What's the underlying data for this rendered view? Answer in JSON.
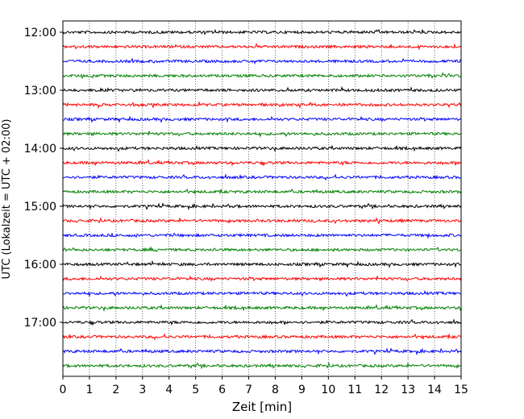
{
  "chart_data": {
    "type": "line",
    "title": "",
    "xlabel": "Zeit  [min]",
    "ylabel": "UTC (Lokalzeit = UTC + 02:00)",
    "xlim": [
      0,
      15
    ],
    "x_ticks": [
      "0",
      "1",
      "2",
      "3",
      "4",
      "5",
      "6",
      "7",
      "8",
      "9",
      "10",
      "11",
      "12",
      "13",
      "14",
      "15"
    ],
    "y_ticks": [
      "12:00",
      "13:00",
      "14:00",
      "15:00",
      "16:00",
      "17:00"
    ],
    "grid": "vertical dotted",
    "trace_colors": [
      "#000000",
      "#ff0000",
      "#0000ff",
      "#008000"
    ],
    "trace_count": 24,
    "trace_start_times": [
      "12:00",
      "12:15",
      "12:30",
      "12:45",
      "13:00",
      "13:15",
      "13:30",
      "13:45",
      "14:00",
      "14:15",
      "14:30",
      "14:45",
      "15:00",
      "15:15",
      "15:30",
      "15:45",
      "16:00",
      "16:15",
      "16:30",
      "16:45",
      "17:00",
      "17:15",
      "17:30",
      "17:45"
    ],
    "trace_minutes_each": 15
  }
}
